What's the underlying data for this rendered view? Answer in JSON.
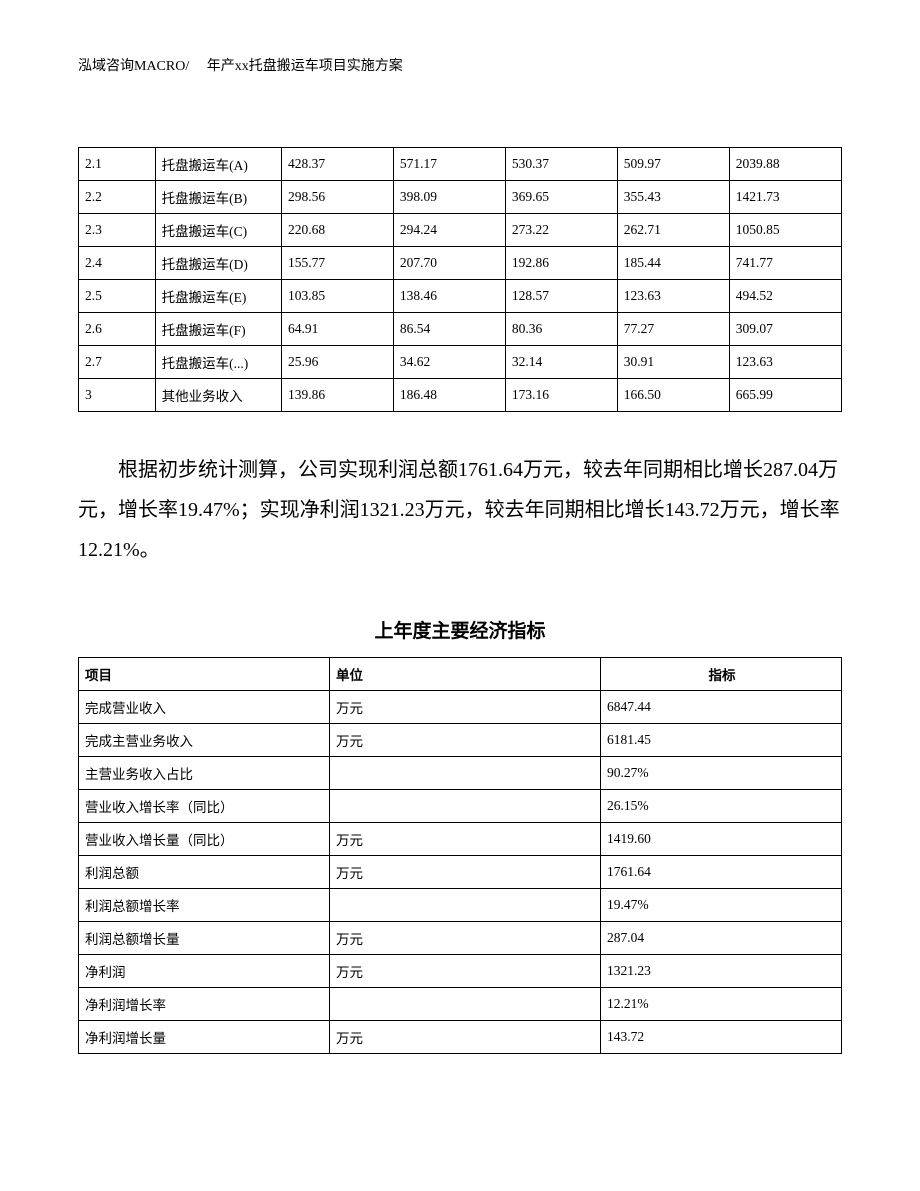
{
  "header": "泓域咨询MACRO/　 年产xx托盘搬运车项目实施方案",
  "table1": {
    "type": "table",
    "columns_count": 7,
    "rows": [
      [
        "2.1",
        "托盘搬运车(A)",
        "428.37",
        "571.17",
        "530.37",
        "509.97",
        "2039.88"
      ],
      [
        "2.2",
        "托盘搬运车(B)",
        "298.56",
        "398.09",
        "369.65",
        "355.43",
        "1421.73"
      ],
      [
        "2.3",
        "托盘搬运车(C)",
        "220.68",
        "294.24",
        "273.22",
        "262.71",
        "1050.85"
      ],
      [
        "2.4",
        "托盘搬运车(D)",
        "155.77",
        "207.70",
        "192.86",
        "185.44",
        "741.77"
      ],
      [
        "2.5",
        "托盘搬运车(E)",
        "103.85",
        "138.46",
        "128.57",
        "123.63",
        "494.52"
      ],
      [
        "2.6",
        "托盘搬运车(F)",
        "64.91",
        "86.54",
        "80.36",
        "77.27",
        "309.07"
      ],
      [
        "2.7",
        "托盘搬运车(...)",
        "25.96",
        "34.62",
        "32.14",
        "30.91",
        "123.63"
      ],
      [
        "3",
        "其他业务收入",
        "139.86",
        "186.48",
        "173.16",
        "166.50",
        "665.99"
      ]
    ],
    "border_color": "#000000",
    "font_size": 13.5
  },
  "paragraph": "根据初步统计测算，公司实现利润总额1761.64万元，较去年同期相比增长287.04万元，增长率19.47%；实现净利润1321.23万元，较去年同期相比增长143.72万元，增长率12.21%。",
  "table2_title": "上年度主要经济指标",
  "table2": {
    "type": "table",
    "headers": [
      "项目",
      "单位",
      "指标"
    ],
    "rows": [
      [
        "完成营业收入",
        "万元",
        "6847.44"
      ],
      [
        "完成主营业务收入",
        "万元",
        "6181.45"
      ],
      [
        "主营业务收入占比",
        "",
        "90.27%"
      ],
      [
        "营业收入增长率（同比）",
        "",
        "26.15%"
      ],
      [
        "营业收入增长量（同比）",
        "万元",
        "1419.60"
      ],
      [
        "利润总额",
        "万元",
        "1761.64"
      ],
      [
        "利润总额增长率",
        "",
        "19.47%"
      ],
      [
        "利润总额增长量",
        "万元",
        "287.04"
      ],
      [
        "净利润",
        "万元",
        "1321.23"
      ],
      [
        "净利润增长率",
        "",
        "12.21%"
      ],
      [
        "净利润增长量",
        "万元",
        "143.72"
      ]
    ],
    "border_color": "#000000",
    "font_size": 13.5
  },
  "colors": {
    "text": "#000000",
    "background": "#ffffff",
    "table_border": "#000000"
  },
  "typography": {
    "body_font_family": "SimSun",
    "header_font_size": 14,
    "body_font_size": 20,
    "table_font_size": 13.5,
    "title_font_size": 19
  }
}
